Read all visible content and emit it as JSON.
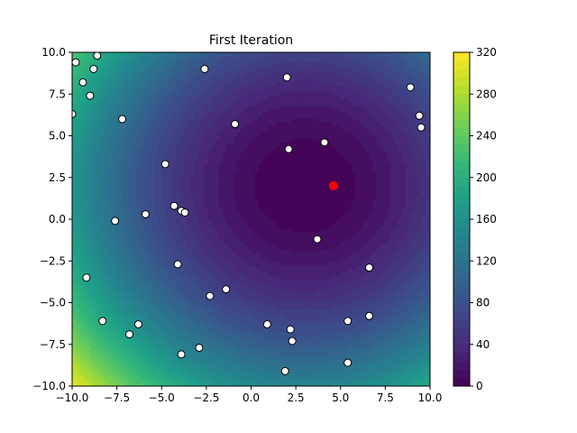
{
  "chart_data": {
    "type": "scatter",
    "title": "First Iteration",
    "xlabel": "",
    "ylabel": "",
    "xlim": [
      -10,
      10
    ],
    "ylim": [
      -10,
      10
    ],
    "xticks": [
      -10,
      -7.5,
      -5,
      -2.5,
      0,
      2.5,
      5,
      7.5,
      10
    ],
    "xtick_labels": [
      "−10.0",
      "−7.5",
      "−5.0",
      "−2.5",
      "0.0",
      "2.5",
      "5.0",
      "7.5",
      "10.0"
    ],
    "yticks": [
      -10,
      -7.5,
      -5,
      -2.5,
      0,
      2.5,
      5,
      7.5,
      10
    ],
    "ytick_labels": [
      "−10.0",
      "−7.5",
      "−5.0",
      "−2.5",
      "0.0",
      "2.5",
      "5.0",
      "7.5",
      "10.0"
    ],
    "grid": false,
    "background": {
      "type": "filled-contour",
      "colormap": "viridis",
      "function": "(x-3)^2 + (y-2)^2",
      "minimum": [
        3,
        2
      ],
      "levels": 40,
      "vmin": 0,
      "vmax": 320
    },
    "colorbar": {
      "ticks": [
        0,
        40,
        80,
        120,
        160,
        200,
        240,
        280,
        320
      ],
      "tick_labels": [
        "0",
        "40",
        "80",
        "120",
        "160",
        "200",
        "240",
        "280",
        "320"
      ],
      "range": [
        0,
        320
      ]
    },
    "points": [
      {
        "x": -9.8,
        "y": 9.4
      },
      {
        "x": -8.6,
        "y": 9.8
      },
      {
        "x": -8.8,
        "y": 9.0
      },
      {
        "x": -9.4,
        "y": 8.2
      },
      {
        "x": -9.0,
        "y": 7.4
      },
      {
        "x": -10.0,
        "y": 6.3
      },
      {
        "x": -7.2,
        "y": 6.0
      },
      {
        "x": -2.6,
        "y": 9.0
      },
      {
        "x": 2.0,
        "y": 8.5
      },
      {
        "x": -0.9,
        "y": 5.7
      },
      {
        "x": 2.1,
        "y": 4.2
      },
      {
        "x": 4.1,
        "y": 4.6
      },
      {
        "x": 8.9,
        "y": 7.9
      },
      {
        "x": 9.4,
        "y": 6.2
      },
      {
        "x": 9.5,
        "y": 5.5
      },
      {
        "x": -4.8,
        "y": 3.3
      },
      {
        "x": -4.3,
        "y": 0.8
      },
      {
        "x": -3.9,
        "y": 0.5
      },
      {
        "x": -3.7,
        "y": 0.4
      },
      {
        "x": -5.9,
        "y": 0.3
      },
      {
        "x": -7.6,
        "y": -0.1
      },
      {
        "x": 3.7,
        "y": -1.2
      },
      {
        "x": -4.1,
        "y": -2.7
      },
      {
        "x": 6.6,
        "y": -2.9
      },
      {
        "x": -9.2,
        "y": -3.5
      },
      {
        "x": -1.4,
        "y": -4.2
      },
      {
        "x": -2.3,
        "y": -4.6
      },
      {
        "x": 6.6,
        "y": -5.8
      },
      {
        "x": 5.4,
        "y": -6.1
      },
      {
        "x": -8.3,
        "y": -6.1
      },
      {
        "x": -6.3,
        "y": -6.3
      },
      {
        "x": 0.9,
        "y": -6.3
      },
      {
        "x": 2.2,
        "y": -6.6
      },
      {
        "x": -6.8,
        "y": -6.9
      },
      {
        "x": 2.3,
        "y": -7.3
      },
      {
        "x": -2.9,
        "y": -7.7
      },
      {
        "x": -3.9,
        "y": -8.1
      },
      {
        "x": 5.4,
        "y": -8.6
      },
      {
        "x": 1.9,
        "y": -9.1
      }
    ],
    "best_point": {
      "x": 4.6,
      "y": 2.0
    },
    "colors": {
      "point_face": "#ffffff",
      "point_edge": "#000000",
      "best_point": "#ff0000"
    }
  }
}
